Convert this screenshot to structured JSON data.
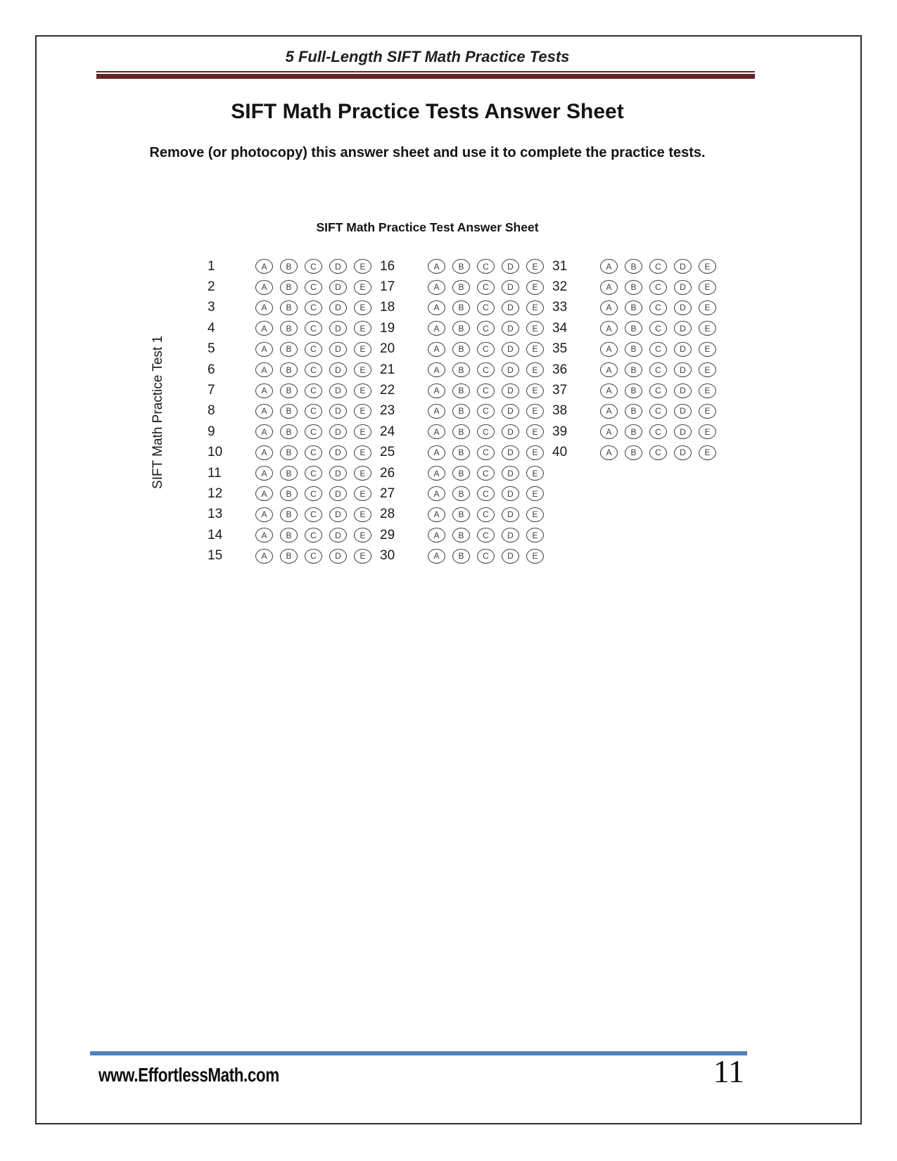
{
  "page": {
    "header_title": "5 Full-Length SIFT Math Practice Tests",
    "title": "SIFT Math Practice Tests Answer Sheet",
    "instruction": "Remove (or photocopy) this answer sheet and use it to complete the practice tests.",
    "grid_title": "SIFT Math Practice Test Answer Sheet",
    "side_label": "SIFT Math Practice Test 1",
    "footer": {
      "website": "www.EffortlessMath.com",
      "page_number": "11"
    }
  },
  "answer_sheet": {
    "choices": [
      "A",
      "B",
      "C",
      "D",
      "E"
    ],
    "columns": [
      {
        "questions": [
          1,
          2,
          3,
          4,
          5,
          6,
          7,
          8,
          9,
          10,
          11,
          12,
          13,
          14,
          15
        ]
      },
      {
        "questions": [
          16,
          17,
          18,
          19,
          20,
          21,
          22,
          23,
          24,
          25,
          26,
          27,
          28,
          29,
          30
        ]
      },
      {
        "questions": [
          31,
          32,
          33,
          34,
          35,
          36,
          37,
          38,
          39,
          40
        ]
      }
    ]
  },
  "colors": {
    "rule_maroon": "#632423",
    "rule_blue": "#4f81bd",
    "text": "#1a1a1a"
  }
}
